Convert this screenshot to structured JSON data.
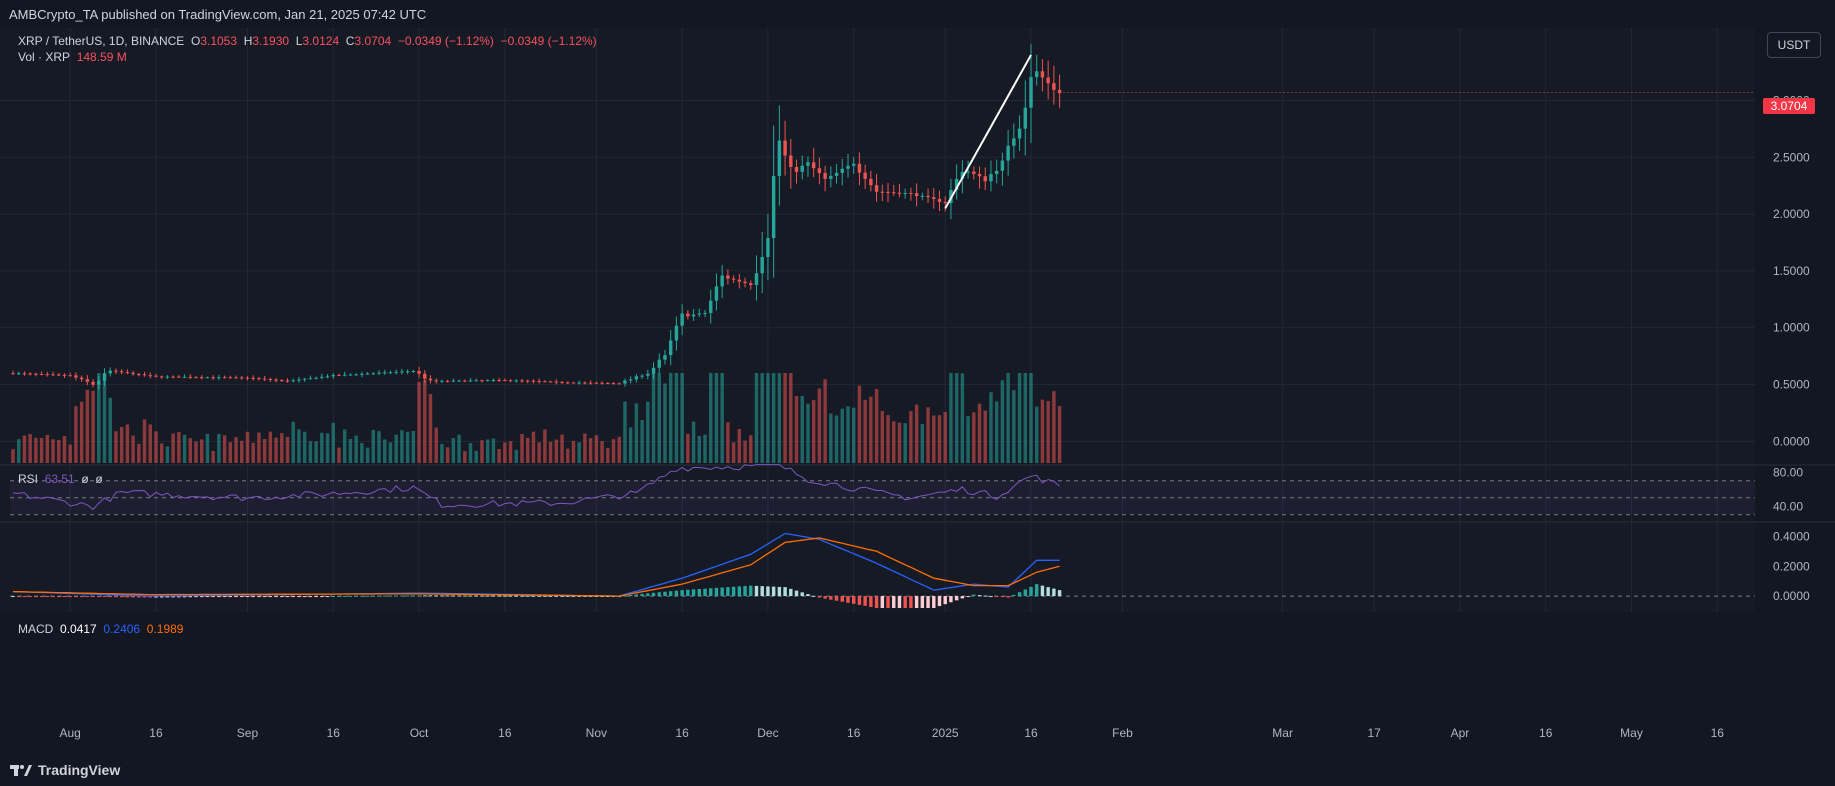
{
  "header": {
    "published": "AMBCrypto_TA published on TradingView.com, Jan 21, 2025 07:42 UTC"
  },
  "legend": {
    "symbol": "XRP / TetherUS, 1D, BINANCE",
    "o_label": "O",
    "o_value": "3.1053",
    "h_label": "H",
    "h_value": "3.1930",
    "l_label": "L",
    "l_value": "3.0124",
    "c_label": "C",
    "c_value": "3.0704",
    "change": "−0.0349 (−1.12%)",
    "change2": "−0.0349 (−1.12%)",
    "vol_label": "Vol · XRP",
    "vol_value": "148.59 M"
  },
  "currency_button": "USDT",
  "last_price": "3.0704",
  "rsi_legend": {
    "label": "RSI",
    "value": "63.51",
    "extra1": "ø",
    "extra2": "ø"
  },
  "macd_legend": {
    "label": "MACD",
    "hist": "0.0417",
    "macd": "0.2406",
    "signal": "0.1989"
  },
  "footer": {
    "brand": "TradingView"
  },
  "colors": {
    "up": "#26a69a",
    "down": "#ef5350",
    "rsi": "#7e57c2",
    "macd": "#2962ff",
    "signal": "#ff6d00",
    "background": "#161a25",
    "grid": "#232733",
    "text": "#b2b5be"
  },
  "chart_data": [
    {
      "type": "candlestick",
      "title": "XRP / TetherUS, 1D, BINANCE",
      "y_axis_ticks": [
        "3.0000",
        "2.5000",
        "2.0000",
        "1.5000",
        "1.0000",
        "0.5000",
        "0.0000"
      ],
      "ylim": [
        -0.12,
        3.55
      ],
      "x_axis_ticks": [
        "Aug",
        "16",
        "Sep",
        "16",
        "Oct",
        "16",
        "Nov",
        "16",
        "Dec",
        "16",
        "2025",
        "16",
        "Feb",
        "Mar",
        "17",
        "Apr",
        "16",
        "May",
        "16"
      ],
      "anchors": [
        {
          "date": "2024-07-22",
          "close": 0.6
        },
        {
          "date": "2024-08-01",
          "close": 0.58
        },
        {
          "date": "2024-08-05",
          "close": 0.5
        },
        {
          "date": "2024-08-08",
          "close": 0.62
        },
        {
          "date": "2024-08-16",
          "close": 0.57
        },
        {
          "date": "2024-09-01",
          "close": 0.56
        },
        {
          "date": "2024-09-08",
          "close": 0.53
        },
        {
          "date": "2024-09-16",
          "close": 0.58
        },
        {
          "date": "2024-09-30",
          "close": 0.62
        },
        {
          "date": "2024-10-03",
          "close": 0.53
        },
        {
          "date": "2024-10-16",
          "close": 0.54
        },
        {
          "date": "2024-10-26",
          "close": 0.52
        },
        {
          "date": "2024-11-05",
          "close": 0.51
        },
        {
          "date": "2024-11-10",
          "close": 0.6
        },
        {
          "date": "2024-11-13",
          "close": 0.75
        },
        {
          "date": "2024-11-16",
          "close": 1.1
        },
        {
          "date": "2024-11-20",
          "close": 1.13
        },
        {
          "date": "2024-11-23",
          "close": 1.45
        },
        {
          "date": "2024-11-28",
          "close": 1.38
        },
        {
          "date": "2024-12-01",
          "close": 1.9
        },
        {
          "date": "2024-12-03",
          "close": 2.65
        },
        {
          "date": "2024-12-05",
          "close": 2.35
        },
        {
          "date": "2024-12-08",
          "close": 2.45
        },
        {
          "date": "2024-12-11",
          "close": 2.3
        },
        {
          "date": "2024-12-16",
          "close": 2.45
        },
        {
          "date": "2024-12-20",
          "close": 2.2
        },
        {
          "date": "2024-12-26",
          "close": 2.18
        },
        {
          "date": "2025-01-01",
          "close": 2.1
        },
        {
          "date": "2025-01-04",
          "close": 2.4
        },
        {
          "date": "2025-01-08",
          "close": 2.3
        },
        {
          "date": "2025-01-11",
          "close": 2.45
        },
        {
          "date": "2025-01-14",
          "close": 2.8
        },
        {
          "date": "2025-01-16",
          "close": 3.3
        },
        {
          "date": "2025-01-18",
          "close": 3.2
        },
        {
          "date": "2025-01-20",
          "close": 3.1
        },
        {
          "date": "2025-01-21",
          "close": 3.07
        }
      ],
      "trendline": {
        "from": {
          "date": "2025-01-01",
          "price": 2.05
        },
        "to": {
          "date": "2025-01-16",
          "price": 3.4
        }
      }
    },
    {
      "type": "line",
      "title": "RSI",
      "y_axis_ticks": [
        "80.00",
        "40.00"
      ],
      "ylim": [
        25,
        85
      ],
      "bands": [
        70,
        50,
        30
      ],
      "anchors": [
        {
          "date": "2024-07-22",
          "value": 55
        },
        {
          "date": "2024-08-05",
          "value": 40
        },
        {
          "date": "2024-08-10",
          "value": 56
        },
        {
          "date": "2024-09-01",
          "value": 50
        },
        {
          "date": "2024-09-16",
          "value": 55
        },
        {
          "date": "2024-09-30",
          "value": 62
        },
        {
          "date": "2024-10-05",
          "value": 42
        },
        {
          "date": "2024-10-26",
          "value": 44
        },
        {
          "date": "2024-11-08",
          "value": 55
        },
        {
          "date": "2024-11-15",
          "value": 85
        },
        {
          "date": "2024-12-03",
          "value": 88
        },
        {
          "date": "2024-12-08",
          "value": 72
        },
        {
          "date": "2024-12-20",
          "value": 56
        },
        {
          "date": "2024-12-26",
          "value": 50
        },
        {
          "date": "2025-01-04",
          "value": 60
        },
        {
          "date": "2025-01-10",
          "value": 52
        },
        {
          "date": "2025-01-16",
          "value": 76
        },
        {
          "date": "2025-01-21",
          "value": 64
        }
      ]
    },
    {
      "type": "line",
      "title": "MACD",
      "y_axis_ticks": [
        "0.4000",
        "0.2000",
        "0.0000"
      ],
      "ylim": [
        -0.08,
        0.47
      ],
      "anchors": [
        {
          "date": "2024-07-22",
          "macd": 0.03,
          "signal": 0.03
        },
        {
          "date": "2024-08-15",
          "macd": 0.0,
          "signal": 0.01
        },
        {
          "date": "2024-10-01",
          "macd": 0.02,
          "signal": 0.015
        },
        {
          "date": "2024-11-05",
          "macd": 0.0,
          "signal": 0.0
        },
        {
          "date": "2024-11-16",
          "macd": 0.12,
          "signal": 0.08
        },
        {
          "date": "2024-11-28",
          "macd": 0.28,
          "signal": 0.21
        },
        {
          "date": "2024-12-04",
          "macd": 0.42,
          "signal": 0.36
        },
        {
          "date": "2024-12-10",
          "macd": 0.38,
          "signal": 0.39
        },
        {
          "date": "2024-12-20",
          "macd": 0.22,
          "signal": 0.3
        },
        {
          "date": "2024-12-30",
          "macd": 0.04,
          "signal": 0.12
        },
        {
          "date": "2025-01-06",
          "macd": 0.08,
          "signal": 0.07
        },
        {
          "date": "2025-01-12",
          "macd": 0.06,
          "signal": 0.07
        },
        {
          "date": "2025-01-17",
          "macd": 0.24,
          "signal": 0.16
        },
        {
          "date": "2025-01-21",
          "macd": 0.24,
          "signal": 0.2
        }
      ]
    }
  ]
}
